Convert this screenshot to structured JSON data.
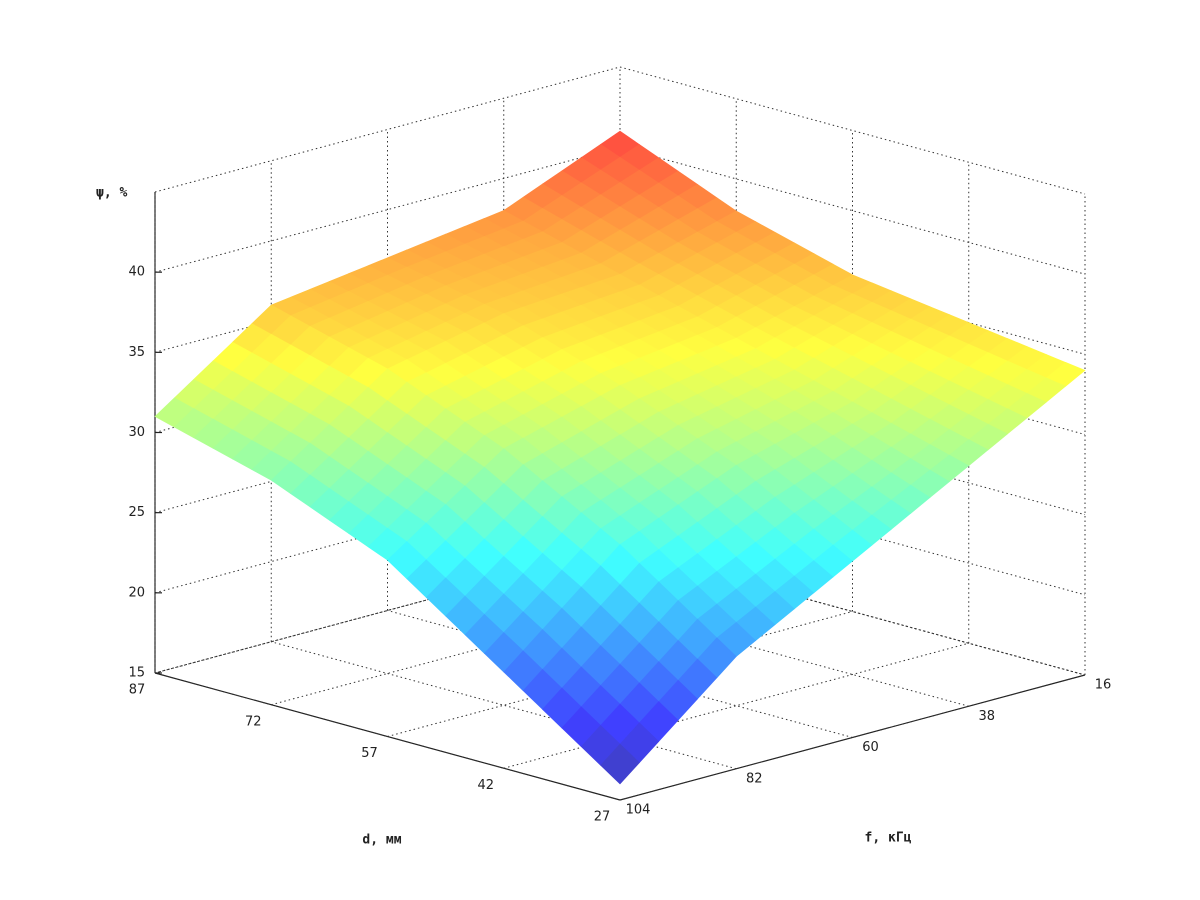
{
  "chart_data": {
    "type": "surface",
    "zlabel": "ψ, %",
    "xlabel": "d, мм",
    "ylabel": "f, кГц",
    "x": [
      87,
      72,
      57,
      42,
      27
    ],
    "y": [
      104,
      82,
      60,
      38,
      16
    ],
    "z": [
      [
        31,
        36,
        37,
        38,
        41
      ],
      [
        29,
        34,
        35.5,
        36,
        38
      ],
      [
        26,
        31,
        33,
        34,
        36
      ],
      [
        21,
        27,
        30,
        32,
        35
      ],
      [
        16,
        22,
        26,
        30,
        34
      ]
    ],
    "xlim": [
      27,
      87
    ],
    "ylim": [
      16,
      104
    ],
    "zlim": [
      15,
      45
    ],
    "xticks": [
      27,
      42,
      57,
      72,
      87
    ],
    "yticks": [
      16,
      38,
      60,
      82,
      104
    ],
    "zticks": [
      15,
      20,
      25,
      30,
      35,
      40
    ],
    "grid": true,
    "colormap": "jet"
  }
}
